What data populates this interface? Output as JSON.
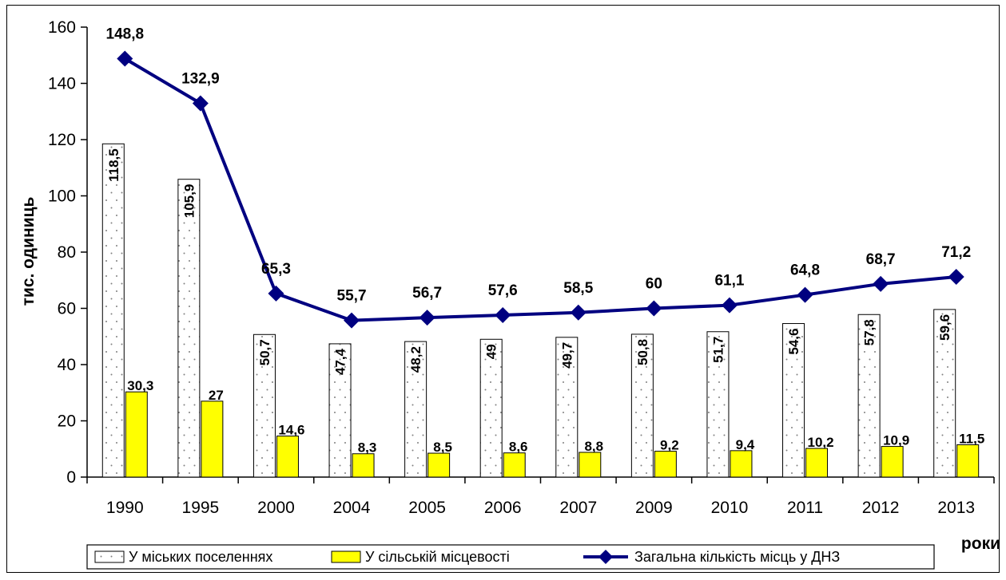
{
  "chart_data": {
    "type": "bar",
    "categories": [
      "1990",
      "1995",
      "2000",
      "2004",
      "2005",
      "2006",
      "2007",
      "2009",
      "2010",
      "2011",
      "2012",
      "2013"
    ],
    "series": [
      {
        "name": "У міських поселеннях",
        "kind": "bar",
        "pattern": "dotted",
        "color": "#ffffff",
        "values": [
          118.5,
          105.9,
          50.7,
          47.4,
          48.2,
          49,
          49.7,
          50.8,
          51.7,
          54.6,
          57.8,
          59.6
        ],
        "labels": [
          "118,5",
          "105,9",
          "50,7",
          "47,4",
          "48,2",
          "49",
          "49,7",
          "50,8",
          "51,7",
          "54,6",
          "57,8",
          "59,6"
        ]
      },
      {
        "name": "У сільській місцевості",
        "kind": "bar",
        "color": "#ffff00",
        "values": [
          30.3,
          27,
          14.6,
          8.3,
          8.5,
          8.6,
          8.8,
          9.2,
          9.4,
          10.2,
          10.9,
          11.5
        ],
        "labels": [
          "30,3",
          "27",
          "14,6",
          "8,3",
          "8,5",
          "8,6",
          "8,8",
          "9,2",
          "9,4",
          "10,2",
          "10,9",
          "11,5"
        ]
      },
      {
        "name": "Загальна кількість місць у ДНЗ",
        "kind": "line",
        "marker": "diamond",
        "color": "#000080",
        "values": [
          148.8,
          132.9,
          65.3,
          55.7,
          56.7,
          57.6,
          58.5,
          60,
          61.1,
          64.8,
          68.7,
          71.2
        ],
        "labels": [
          "148,8",
          "132,9",
          "65,3",
          "55,7",
          "56,7",
          "57,6",
          "58,5",
          "60",
          "61,1",
          "64,8",
          "68,7",
          "71,2"
        ]
      }
    ],
    "ylabel": "тис. одиниць",
    "xlabel": "роки",
    "ylim": [
      0,
      160
    ],
    "yticks": [
      0,
      20,
      40,
      60,
      80,
      100,
      120,
      140,
      160
    ],
    "ytick_labels": [
      "0",
      "20",
      "40",
      "60",
      "80",
      "100",
      "120",
      "140",
      "160"
    ],
    "grid": false,
    "legend_position": "bottom"
  }
}
